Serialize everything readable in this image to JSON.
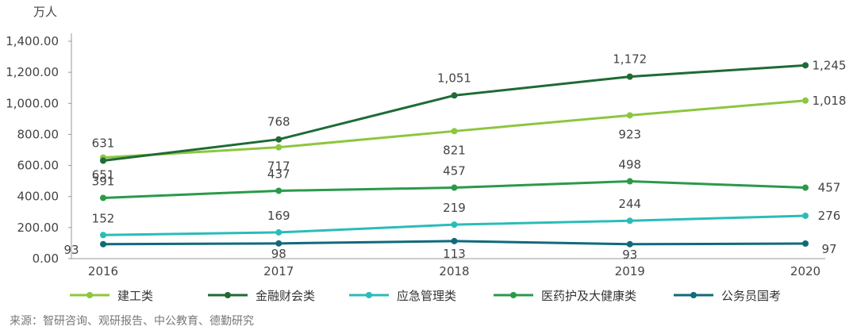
{
  "chart_data": {
    "type": "line",
    "unit_label": "万人",
    "categories": [
      "2016",
      "2017",
      "2018",
      "2019",
      "2020"
    ],
    "y_ticks": [
      "0.00",
      "200.00",
      "400.00",
      "600.00",
      "800.00",
      "1,000.00",
      "1,200.00",
      "1,400.00"
    ],
    "ylim": [
      0,
      1400
    ],
    "grid": false,
    "legend_position": "bottom",
    "series": [
      {
        "name": "建工类",
        "color": "#8dc63f",
        "values": [
          651,
          717,
          821,
          923,
          1018
        ],
        "labels": [
          "651",
          "717",
          "821",
          "923",
          "1,018"
        ]
      },
      {
        "name": "金融财会类",
        "color": "#1e6b35",
        "values": [
          631,
          768,
          1051,
          1172,
          1245
        ],
        "labels": [
          "631",
          "768",
          "1,051",
          "1,172",
          "1,245"
        ]
      },
      {
        "name": "应急管理类",
        "color": "#2bbcb8",
        "values": [
          152,
          169,
          219,
          244,
          276
        ],
        "labels": [
          "152",
          "169",
          "219",
          "244",
          "276"
        ]
      },
      {
        "name": "医药护及大健康类",
        "color": "#2a9a4a",
        "values": [
          391,
          437,
          457,
          498,
          457
        ],
        "labels": [
          "391",
          "437",
          "457",
          "498",
          "457"
        ]
      },
      {
        "name": "公务员国考",
        "color": "#0f6b7a",
        "values": [
          93,
          98,
          113,
          93,
          97
        ],
        "labels": [
          "93",
          "98",
          "113",
          "93",
          "97"
        ]
      }
    ]
  },
  "source": "来源：智研咨询、观研报告、中公教育、德勤研究"
}
